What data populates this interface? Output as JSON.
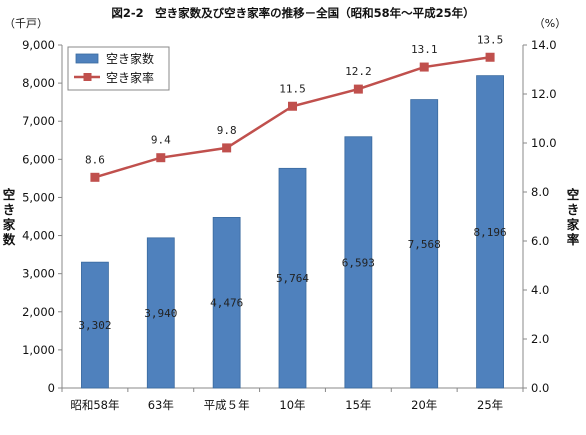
{
  "chart_data": {
    "type": "bar",
    "title": "図2-2　空き家数及び空き家率の推移－全国（昭和58年～平成25年）",
    "categories": [
      "昭和58年",
      "63年",
      "平成５年",
      "10年",
      "15年",
      "20年",
      "25年"
    ],
    "left_unit": "（千戸）",
    "right_unit": "（%）",
    "left_axis_title": "空き家数",
    "right_axis_title": "空き家率",
    "ylim": [
      0,
      9000
    ],
    "y2lim": [
      0,
      14
    ],
    "y_ticks": [
      "0",
      "1,000",
      "2,000",
      "3,000",
      "4,000",
      "5,000",
      "6,000",
      "7,000",
      "8,000",
      "9,000"
    ],
    "y2_ticks": [
      "0.0",
      "2.0",
      "4.0",
      "6.0",
      "8.0",
      "10.0",
      "12.0",
      "14.0"
    ],
    "series": [
      {
        "name": "空き家数",
        "type": "bar",
        "axis": "left",
        "color": "#4f81bd",
        "values": [
          3302,
          3940,
          4476,
          5764,
          6593,
          7568,
          8196
        ],
        "labels": [
          "3,302",
          "3,940",
          "4,476",
          "5,764",
          "6,593",
          "7,568",
          "8,196"
        ]
      },
      {
        "name": "空き家率",
        "type": "line",
        "axis": "right",
        "color": "#c0504d",
        "values": [
          8.6,
          9.4,
          9.8,
          11.5,
          12.2,
          13.1,
          13.5
        ],
        "labels": [
          "8.6",
          "9.4",
          "9.8",
          "11.5",
          "12.2",
          "13.1",
          "13.5"
        ]
      }
    ],
    "legend_position": "top-left",
    "grid": false
  }
}
